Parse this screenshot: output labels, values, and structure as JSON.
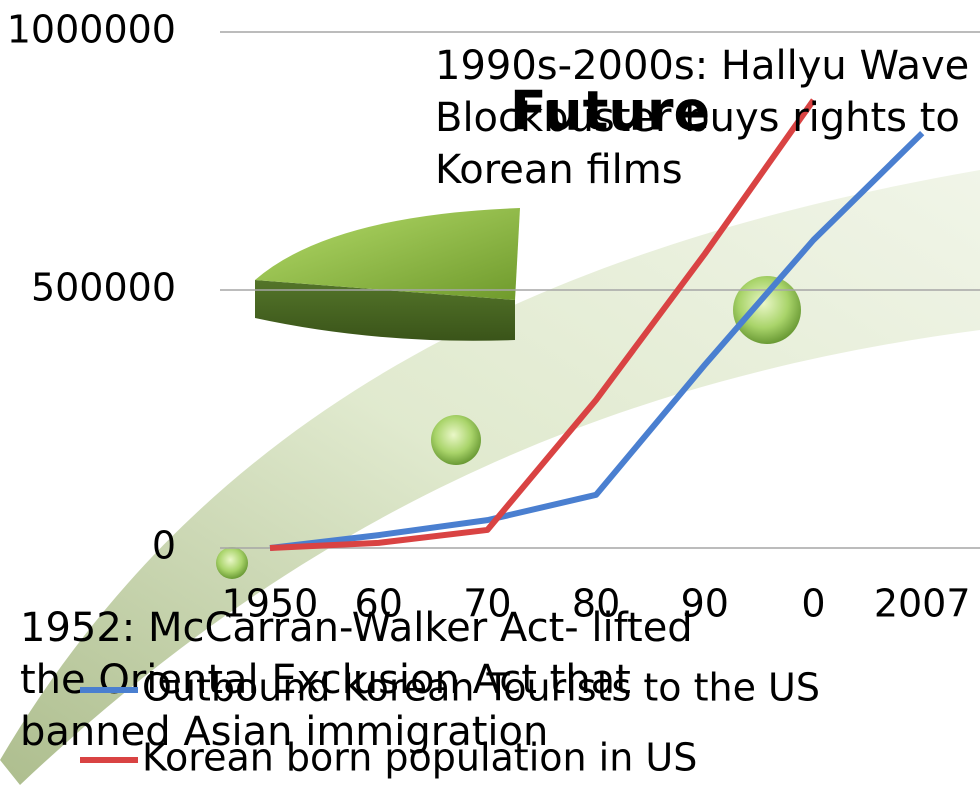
{
  "chart_data": {
    "type": "line",
    "title": "Future",
    "categories": [
      "1950",
      "60",
      "70",
      "80",
      "90",
      "0",
      "2007"
    ],
    "series": [
      {
        "name": "Outbound Korean Tourists to the US",
        "color": "#4a7fd0",
        "values": [
          0,
          25000,
          54000,
          103000,
          355000,
          597000,
          804000
        ]
      },
      {
        "name": "Korean born population in US",
        "color": "#d94343",
        "values": [
          0,
          10000,
          35000,
          287000,
          570000,
          868000,
          null
        ]
      }
    ],
    "ylim": [
      0,
      1000000
    ],
    "yticks": [
      0,
      500000,
      1000000
    ],
    "grid": true,
    "annotations": [
      {
        "lines": [
          "1990s-2000s: Hallyu Wave",
          "Blockbuster buys rights to",
          "Korean films"
        ]
      },
      {
        "lines": [
          "1952: McCarran-Walker Act- lifted",
          "the Oriental Exclusion Act that",
          "banned Asian immigration"
        ]
      }
    ]
  }
}
